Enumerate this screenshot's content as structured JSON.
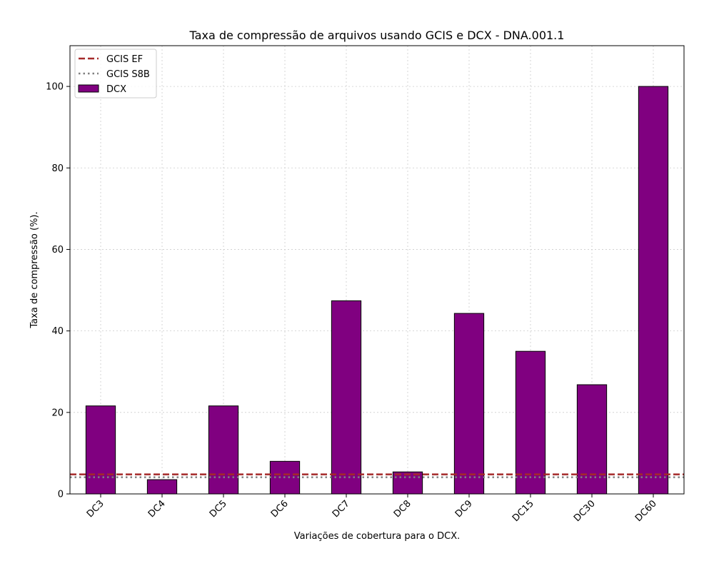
{
  "chart_data": {
    "type": "bar",
    "title": "Taxa de compressão de arquivos usando GCIS e DCX -  DNA.001.1",
    "xlabel": "Variações de cobertura para o DCX.",
    "ylabel": "Taxa de compressão (%).",
    "categories": [
      "DC3",
      "DC4",
      "DC5",
      "DC6",
      "DC7",
      "DC8",
      "DC9",
      "DC15",
      "DC30",
      "DC60"
    ],
    "series": [
      {
        "name": "DCX",
        "values": [
          21.6,
          3.5,
          21.6,
          8.0,
          47.4,
          5.4,
          44.3,
          35.0,
          26.8,
          100.0
        ],
        "color": "#800080",
        "edge_color": "#000000"
      }
    ],
    "reference_lines": [
      {
        "name": "GCIS EF",
        "value": 4.8,
        "color": "#a52a2a",
        "style": "dashed"
      },
      {
        "name": "GCIS S8B",
        "value": 4.1,
        "color": "#808080",
        "style": "dotted"
      }
    ],
    "ylim": [
      0,
      110
    ],
    "yticks": [
      0,
      20,
      40,
      60,
      80,
      100
    ],
    "grid": true,
    "legend_position": "top-left"
  }
}
